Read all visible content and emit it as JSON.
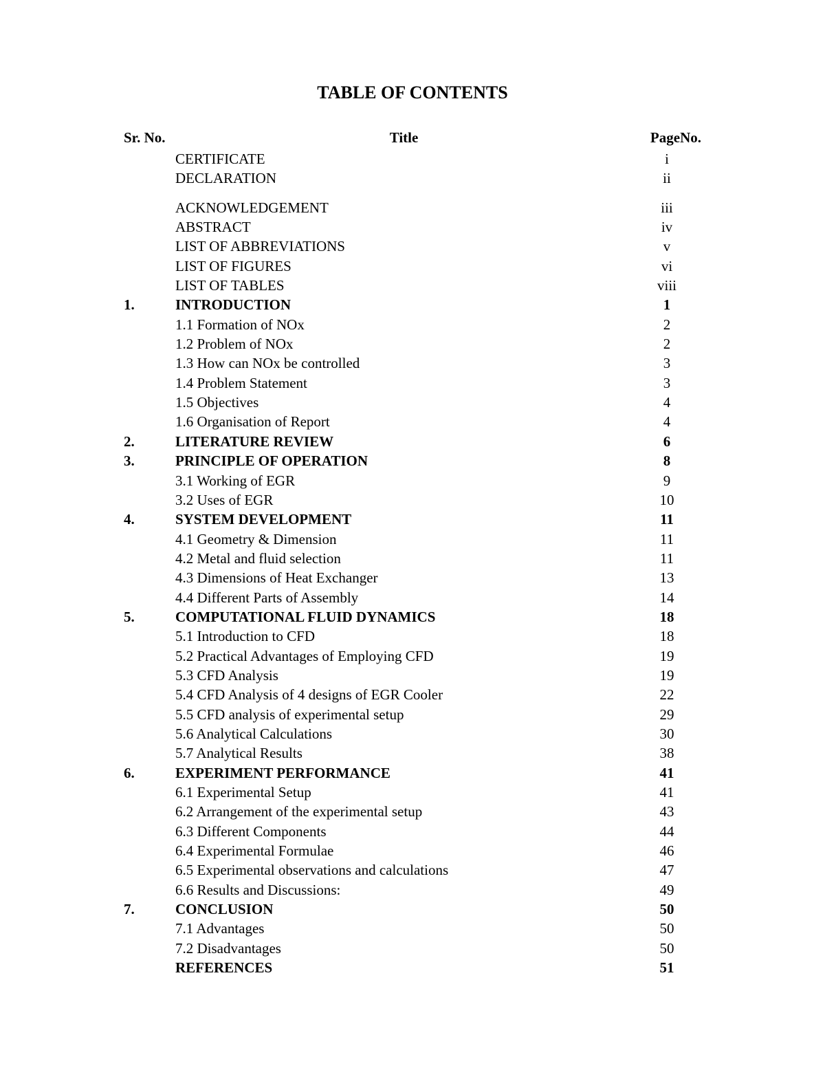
{
  "heading": "TABLE OF CONTENTS",
  "headers": {
    "sr": "Sr. No.",
    "title": "Title",
    "page": "PageNo."
  },
  "rows": [
    {
      "sr": "",
      "title": "CERTIFICATE",
      "page": "i",
      "bold": false
    },
    {
      "sr": "",
      "title": "DECLARATION",
      "page": "ii",
      "bold": false
    },
    {
      "gap": true
    },
    {
      "sr": "",
      "title": "ACKNOWLEDGEMENT",
      "page": "iii",
      "bold": false
    },
    {
      "sr": "",
      "title": "ABSTRACT",
      "page": "iv",
      "bold": false
    },
    {
      "sr": "",
      "title": "LIST OF ABBREVIATIONS",
      "page": "v",
      "bold": false
    },
    {
      "sr": "",
      "title": "LIST OF FIGURES",
      "page": "vi",
      "bold": false
    },
    {
      "sr": "",
      "title": "LIST OF TABLES",
      "page": "viii",
      "bold": false
    },
    {
      "sr": "1.",
      "title": "INTRODUCTION",
      "page": "1",
      "bold": true
    },
    {
      "sr": "",
      "title": "1.1 Formation of NOx",
      "page": "2",
      "bold": false
    },
    {
      "sr": "",
      "title": "1.2 Problem of NOx",
      "page": "2",
      "bold": false
    },
    {
      "sr": "",
      "title": "1.3 How can NOx be controlled",
      "page": "3",
      "bold": false
    },
    {
      "sr": "",
      "title": "1.4 Problem Statement",
      "page": "3",
      "bold": false
    },
    {
      "sr": "",
      "title": "1.5 Objectives",
      "page": "4",
      "bold": false
    },
    {
      "sr": "",
      "title": "1.6 Organisation of Report",
      "page": "4",
      "bold": false
    },
    {
      "sr": "2.",
      "title": "LITERATURE REVIEW",
      "page": "6",
      "bold": true
    },
    {
      "sr": "3.",
      "title": "PRINCIPLE OF OPERATION",
      "page": "8",
      "bold": true
    },
    {
      "sr": "",
      "title": "3.1 Working of EGR",
      "page": "9",
      "bold": false
    },
    {
      "sr": "",
      "title": "3.2 Uses of EGR",
      "page": "10",
      "bold": false
    },
    {
      "sr": "4.",
      "title": "SYSTEM DEVELOPMENT",
      "page": "11",
      "bold": true
    },
    {
      "sr": "",
      "title": "4.1 Geometry & Dimension",
      "page": "11",
      "bold": false
    },
    {
      "sr": "",
      "title": "4.2 Metal and fluid selection",
      "page": "11",
      "bold": false
    },
    {
      "sr": "",
      "title": "4.3 Dimensions of Heat Exchanger",
      "page": "13",
      "bold": false
    },
    {
      "sr": "",
      "title": "4.4 Different Parts of Assembly",
      "page": "14",
      "bold": false
    },
    {
      "sr": "5.",
      "title": "COMPUTATIONAL FLUID DYNAMICS",
      "page": "18",
      "bold": true
    },
    {
      "sr": "",
      "title": "5.1 Introduction to CFD",
      "page": "18",
      "bold": false
    },
    {
      "sr": "",
      "title": "5.2 Practical Advantages of Employing CFD",
      "page": "19",
      "bold": false
    },
    {
      "sr": "",
      "title": "5.3 CFD Analysis",
      "page": "19",
      "bold": false
    },
    {
      "sr": "",
      "title": "5.4 CFD Analysis of 4 designs of EGR Cooler",
      "page": "22",
      "bold": false
    },
    {
      "sr": "",
      "title": "5.5 CFD analysis of experimental setup",
      "page": "29",
      "bold": false
    },
    {
      "sr": "",
      "title": "5.6  Analytical Calculations",
      "page": "30",
      "bold": false
    },
    {
      "sr": "",
      "title": "5.7 Analytical Results",
      "page": "38",
      "bold": false
    },
    {
      "sr": "6.",
      "title": "EXPERIMENT PERFORMANCE",
      "page": "41",
      "bold": true
    },
    {
      "sr": "",
      "title": "6.1 Experimental Setup",
      "page": "41",
      "bold": false
    },
    {
      "sr": "",
      "title": "6.2 Arrangement of the experimental setup",
      "page": "43",
      "bold": false
    },
    {
      "sr": "",
      "title": "6.3 Different Components",
      "page": "44",
      "bold": false
    },
    {
      "sr": "",
      "title": "6.4 Experimental Formulae",
      "page": "46",
      "bold": false
    },
    {
      "sr": "",
      "title": "6.5 Experimental observations and calculations",
      "page": "47",
      "bold": false
    },
    {
      "sr": "",
      "title": "6.6 Results and Discussions:",
      "page": "49",
      "bold": false
    },
    {
      "sr": "7.",
      "title": "CONCLUSION",
      "page": "50",
      "bold": true
    },
    {
      "sr": "",
      "title": "7.1 Advantages",
      "page": "50",
      "bold": false
    },
    {
      "sr": "",
      "title": "7.2 Disadvantages",
      "page": "50",
      "bold": false
    },
    {
      "sr": "",
      "title": "REFERENCES",
      "page": "51",
      "bold": true
    }
  ]
}
